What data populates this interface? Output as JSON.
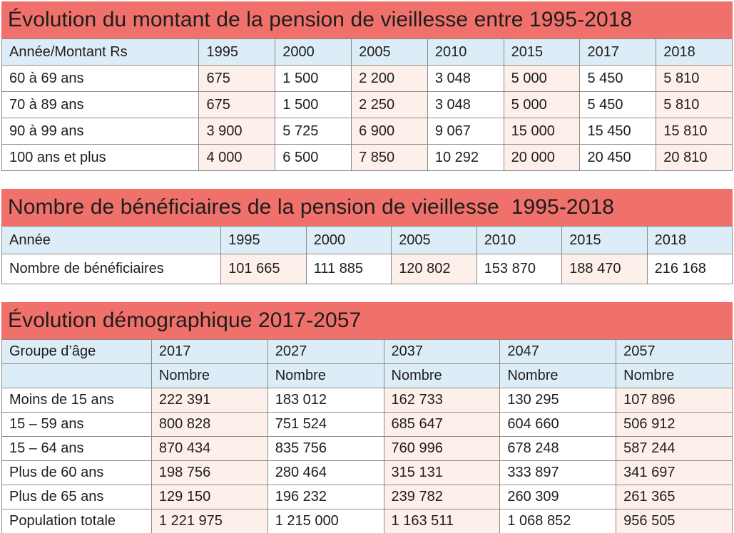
{
  "colors": {
    "title_bg": "#f0716b",
    "header_bg": "#ddedf8",
    "cell_pink": "#fdf0ea",
    "cell_white": "#ffffff",
    "border": "#8d8a87",
    "text": "#1d1d1b"
  },
  "chart_data": [
    {
      "type": "table",
      "title": "Évolution du montant de la pension de vieillesse entre 1995-2018",
      "columns": [
        "Année/Montant Rs",
        "1995",
        "2000",
        "2005",
        "2010",
        "2015",
        "2017",
        "2018"
      ],
      "rows": [
        {
          "label": "60 à 69 ans",
          "values": [
            "675",
            "1 500",
            "2 200",
            "3 048",
            "5 000",
            "5 450",
            "5 810"
          ]
        },
        {
          "label": "70 à 89 ans",
          "values": [
            "675",
            "1 500",
            "2 250",
            "3 048",
            "5 000",
            "5 450",
            "5 810"
          ]
        },
        {
          "label": "90 à 99 ans",
          "values": [
            "3 900",
            "5 725",
            "6 900",
            "9 067",
            "15 000",
            "15 450",
            "15 810"
          ]
        },
        {
          "label": "100 ans et plus",
          "values": [
            "4 000",
            "6 500",
            "7 850",
            "10 292",
            "20 000",
            "20 450",
            "20 810"
          ]
        }
      ]
    },
    {
      "type": "table",
      "title": "Nombre de bénéficiaires de la pension de vieillesse  1995-2018",
      "columns": [
        "Année",
        "1995",
        "2000",
        "2005",
        "2010",
        "2015",
        "2018"
      ],
      "rows": [
        {
          "label": "Nombre de bénéficiaires",
          "values": [
            "101 665",
            "111 885",
            "120 802",
            "153 870",
            "188 470",
            "216 168"
          ]
        }
      ]
    },
    {
      "type": "table",
      "title": "Évolution démographique 2017-2057",
      "columns": [
        "Groupe d’âge",
        "2017",
        "2027",
        "2037",
        "2047",
        "2057"
      ],
      "subheader": [
        "",
        "Nombre",
        "Nombre",
        "Nombre",
        "Nombre",
        "Nombre"
      ],
      "rows": [
        {
          "label": "Moins de 15 ans",
          "values": [
            "222 391",
            "183 012",
            "162 733",
            "130 295",
            "107 896"
          ]
        },
        {
          "label": "15 – 59 ans",
          "values": [
            "800 828",
            "751 524",
            "685 647",
            "604 660",
            "506 912"
          ]
        },
        {
          "label": "15 – 64 ans",
          "values": [
            "870 434",
            "835 756",
            "760 996",
            "678 248",
            "587 244"
          ]
        },
        {
          "label": "Plus de 60 ans",
          "values": [
            "198 756",
            "280 464",
            "315 131",
            "333 897",
            "341 697"
          ]
        },
        {
          "label": "Plus de 65 ans",
          "values": [
            "129 150",
            "196 232",
            "239 782",
            "260 309",
            "261 365"
          ]
        },
        {
          "label": "Population totale",
          "values": [
            "1 221 975",
            "1 215 000",
            "1 163 511",
            "1 068 852",
            "956 505"
          ]
        }
      ]
    }
  ]
}
